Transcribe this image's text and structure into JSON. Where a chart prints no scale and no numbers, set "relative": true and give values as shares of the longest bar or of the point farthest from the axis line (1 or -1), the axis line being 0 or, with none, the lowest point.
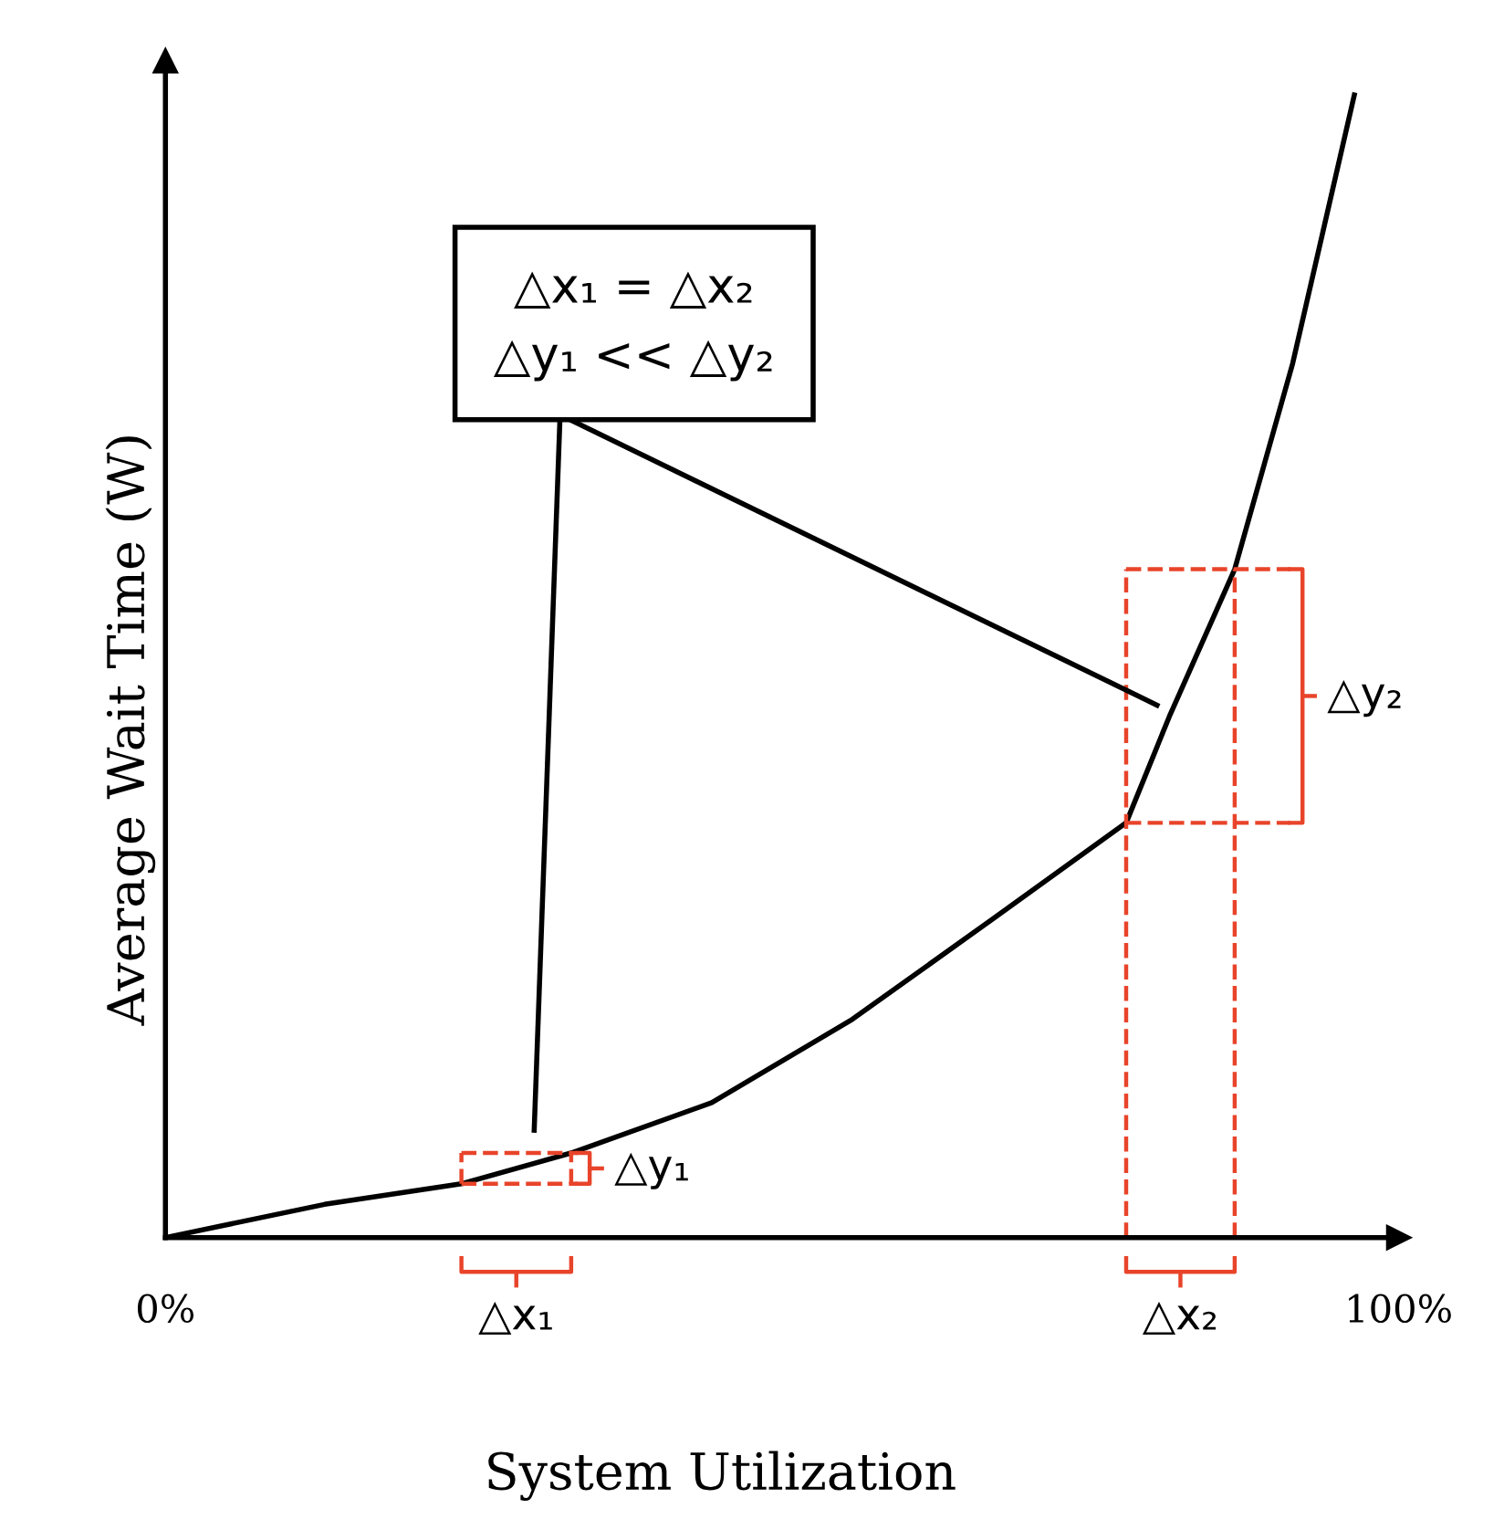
{
  "chart_data": {
    "type": "line",
    "relative": true,
    "xlabel": "System Utilization",
    "ylabel": "Average Wait Time (W)",
    "xlim": [
      0,
      100
    ],
    "xticks": [
      {
        "value": 0,
        "label": "0%"
      },
      {
        "value": 100,
        "label": "100%"
      }
    ],
    "tick_labels": "x",
    "series": [
      {
        "color": "#000000",
        "x": [
          0,
          12.9,
          24,
          32.9,
          44.3,
          55.7,
          67.1,
          77.9,
          81.4,
          86.7,
          91.4,
          96.4
        ],
        "values": [
          0,
          0.029,
          0.047,
          0.074,
          0.118,
          0.191,
          0.279,
          0.363,
          0.456,
          0.585,
          0.765,
          1.0
        ]
      }
    ],
    "annotations": [
      "△x₁ = △x₂\n△y₁ << △y₂",
      "△x₁",
      "△y₁",
      "△x₂",
      "△y₂"
    ]
  }
}
